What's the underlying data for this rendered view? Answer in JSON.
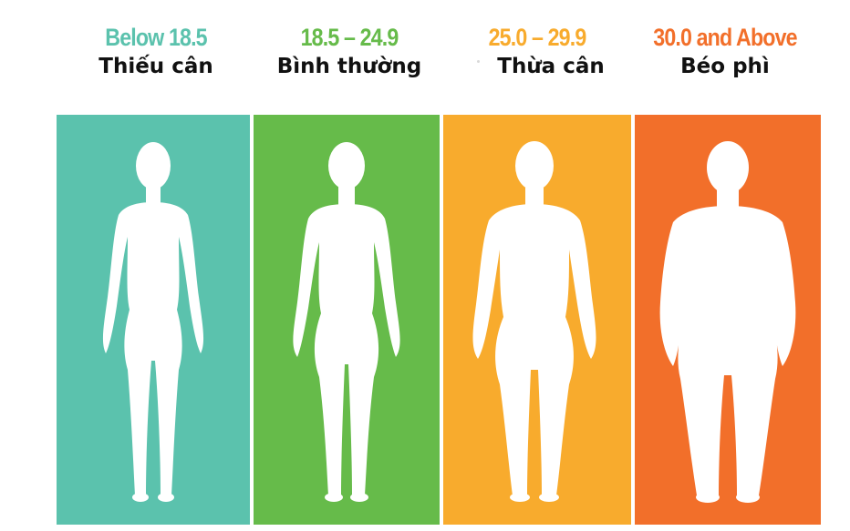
{
  "categories": [
    {
      "range": "Below 18.5",
      "label": "Thiếu cân",
      "color": "#5bc2ad",
      "text_color": "#5bc2ad",
      "figure": "underweight"
    },
    {
      "range": "18.5 – 24.9",
      "label": "Bình thường",
      "color": "#66bb4a",
      "text_color": "#66bb4a",
      "figure": "normal"
    },
    {
      "range": "25.0 – 29.9",
      "label": "Thừa cân",
      "color": "#f8ab2d",
      "text_color": "#f8ab2d",
      "figure": "overweight"
    },
    {
      "range": "30.0 and Above",
      "label": "Béo phì",
      "color": "#f26f2a",
      "text_color": "#f26f2a",
      "figure": "obese"
    }
  ]
}
